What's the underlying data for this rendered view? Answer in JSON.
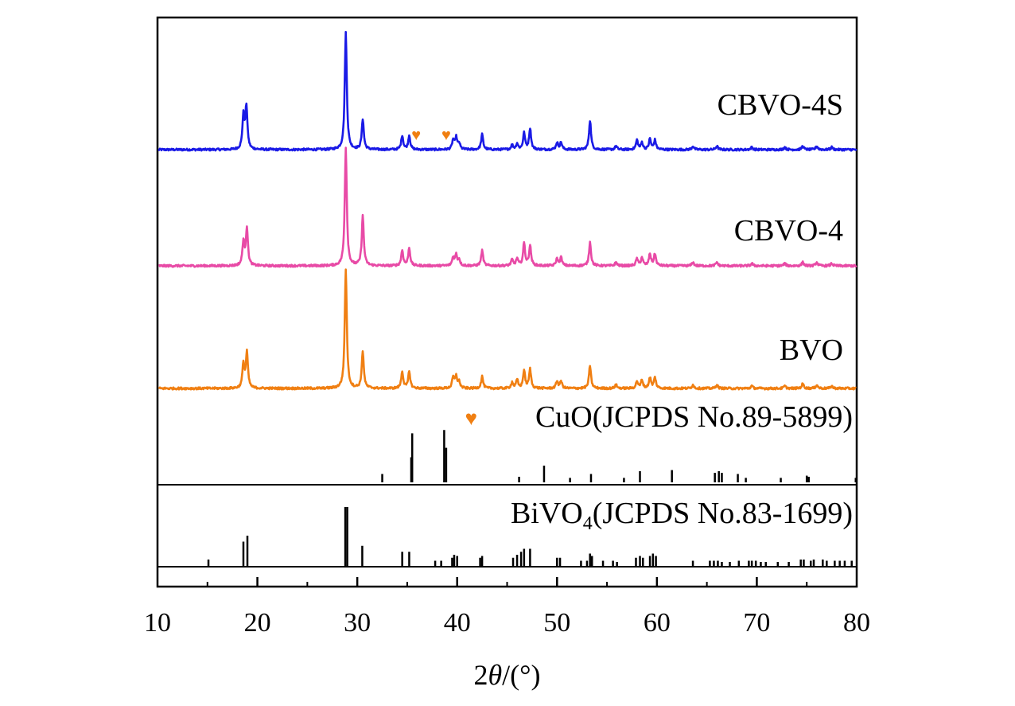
{
  "chart_data": {
    "type": "line",
    "title": "",
    "xlabel": "2θ/(°)",
    "xlabel_parts": {
      "prefix": "2",
      "symbol": "θ",
      "suffix": "/(°)"
    },
    "ylabel": "",
    "xlim": [
      10,
      80
    ],
    "xticks": [
      10,
      20,
      30,
      40,
      50,
      60,
      70,
      80
    ],
    "xtick_labels": [
      "10",
      "20",
      "30",
      "40",
      "50",
      "60",
      "70",
      "80"
    ],
    "series": [
      {
        "name": "CBVO-4S",
        "color": "#1a1ae6",
        "peaks": [
          [
            18.6,
            0.28
          ],
          [
            18.9,
            0.36
          ],
          [
            28.85,
            1.0
          ],
          [
            30.55,
            0.26
          ],
          [
            34.5,
            0.12
          ],
          [
            35.2,
            0.12
          ],
          [
            39.6,
            0.08
          ],
          [
            39.9,
            0.1
          ],
          [
            40.2,
            0.05
          ],
          [
            42.5,
            0.13
          ],
          [
            45.5,
            0.04
          ],
          [
            46.0,
            0.05
          ],
          [
            46.7,
            0.14
          ],
          [
            47.3,
            0.18
          ],
          [
            50.0,
            0.06
          ],
          [
            50.4,
            0.06
          ],
          [
            53.3,
            0.25
          ],
          [
            55.9,
            0.03
          ],
          [
            58.0,
            0.08
          ],
          [
            58.5,
            0.06
          ],
          [
            59.3,
            0.09
          ],
          [
            59.8,
            0.08
          ],
          [
            63.6,
            0.03
          ],
          [
            66.0,
            0.03
          ],
          [
            69.5,
            0.02
          ],
          [
            72.8,
            0.02
          ],
          [
            74.6,
            0.03
          ],
          [
            76.0,
            0.03
          ],
          [
            77.5,
            0.02
          ]
        ],
        "impurity_markers": [
          35.9,
          38.9
        ]
      },
      {
        "name": "CBVO-4",
        "color": "#e84aa6",
        "peaks": [
          [
            18.6,
            0.2
          ],
          [
            18.95,
            0.32
          ],
          [
            28.85,
            1.0
          ],
          [
            30.55,
            0.42
          ],
          [
            34.5,
            0.13
          ],
          [
            35.2,
            0.15
          ],
          [
            39.6,
            0.07
          ],
          [
            39.9,
            0.09
          ],
          [
            40.2,
            0.05
          ],
          [
            42.5,
            0.13
          ],
          [
            45.5,
            0.05
          ],
          [
            46.0,
            0.06
          ],
          [
            46.7,
            0.19
          ],
          [
            47.3,
            0.17
          ],
          [
            50.0,
            0.06
          ],
          [
            50.4,
            0.07
          ],
          [
            53.3,
            0.2
          ],
          [
            55.9,
            0.03
          ],
          [
            58.0,
            0.06
          ],
          [
            58.5,
            0.07
          ],
          [
            59.3,
            0.1
          ],
          [
            59.8,
            0.1
          ],
          [
            63.6,
            0.03
          ],
          [
            66.0,
            0.03
          ],
          [
            69.5,
            0.02
          ],
          [
            72.8,
            0.02
          ],
          [
            74.6,
            0.03
          ],
          [
            76.0,
            0.03
          ],
          [
            77.5,
            0.02
          ]
        ],
        "impurity_markers": []
      },
      {
        "name": "BVO",
        "color": "#f07f12",
        "peaks": [
          [
            18.6,
            0.2
          ],
          [
            18.95,
            0.3
          ],
          [
            28.85,
            1.0
          ],
          [
            30.55,
            0.31
          ],
          [
            34.5,
            0.14
          ],
          [
            35.2,
            0.14
          ],
          [
            39.6,
            0.09
          ],
          [
            39.9,
            0.1
          ],
          [
            40.2,
            0.05
          ],
          [
            42.5,
            0.1
          ],
          [
            45.5,
            0.05
          ],
          [
            46.0,
            0.07
          ],
          [
            46.7,
            0.15
          ],
          [
            47.3,
            0.16
          ],
          [
            50.0,
            0.06
          ],
          [
            50.4,
            0.06
          ],
          [
            53.3,
            0.19
          ],
          [
            55.9,
            0.03
          ],
          [
            58.0,
            0.06
          ],
          [
            58.5,
            0.07
          ],
          [
            59.3,
            0.09
          ],
          [
            59.8,
            0.09
          ],
          [
            63.6,
            0.03
          ],
          [
            66.0,
            0.03
          ],
          [
            69.5,
            0.02
          ],
          [
            72.8,
            0.02
          ],
          [
            74.6,
            0.04
          ],
          [
            76.0,
            0.03
          ],
          [
            77.5,
            0.02
          ]
        ],
        "impurity_markers": []
      }
    ],
    "reference_patterns": [
      {
        "name": "CuO(JCPDS No.89-5899)",
        "marker": "♥",
        "marker_color": "#f07f12",
        "lines": [
          [
            32.5,
            0.15
          ],
          [
            35.4,
            0.45
          ],
          [
            35.5,
            0.88
          ],
          [
            38.7,
            0.94
          ],
          [
            38.9,
            0.62
          ],
          [
            46.2,
            0.1
          ],
          [
            48.7,
            0.3
          ],
          [
            51.3,
            0.08
          ],
          [
            53.4,
            0.15
          ],
          [
            56.7,
            0.08
          ],
          [
            58.3,
            0.2
          ],
          [
            61.5,
            0.22
          ],
          [
            65.8,
            0.17
          ],
          [
            66.2,
            0.2
          ],
          [
            66.5,
            0.17
          ],
          [
            68.1,
            0.15
          ],
          [
            68.9,
            0.08
          ],
          [
            72.4,
            0.08
          ],
          [
            75.0,
            0.12
          ],
          [
            75.2,
            0.1
          ],
          [
            79.9,
            0.08
          ]
        ]
      },
      {
        "name": "BiVO₄(JCPDS No.83-1699)",
        "name_parts": {
          "prefix": "BiVO",
          "subscript": "4",
          "suffix": "(JCPDS No.83-1699)"
        },
        "marker": "",
        "lines": [
          [
            15.1,
            0.12
          ],
          [
            18.6,
            0.42
          ],
          [
            19.0,
            0.52
          ],
          [
            28.8,
            1.0
          ],
          [
            29.0,
            1.0
          ],
          [
            30.5,
            0.35
          ],
          [
            34.5,
            0.25
          ],
          [
            35.2,
            0.25
          ],
          [
            37.8,
            0.1
          ],
          [
            38.4,
            0.1
          ],
          [
            39.5,
            0.15
          ],
          [
            39.7,
            0.2
          ],
          [
            40.0,
            0.18
          ],
          [
            42.3,
            0.15
          ],
          [
            42.5,
            0.18
          ],
          [
            45.6,
            0.15
          ],
          [
            46.0,
            0.2
          ],
          [
            46.4,
            0.25
          ],
          [
            46.7,
            0.3
          ],
          [
            47.3,
            0.3
          ],
          [
            50.0,
            0.15
          ],
          [
            50.3,
            0.15
          ],
          [
            52.4,
            0.1
          ],
          [
            53.0,
            0.1
          ],
          [
            53.3,
            0.22
          ],
          [
            53.5,
            0.18
          ],
          [
            54.6,
            0.1
          ],
          [
            55.6,
            0.1
          ],
          [
            56.0,
            0.08
          ],
          [
            57.9,
            0.15
          ],
          [
            58.3,
            0.18
          ],
          [
            58.6,
            0.15
          ],
          [
            59.3,
            0.18
          ],
          [
            59.6,
            0.22
          ],
          [
            59.9,
            0.18
          ],
          [
            63.6,
            0.1
          ],
          [
            65.3,
            0.1
          ],
          [
            65.7,
            0.1
          ],
          [
            66.1,
            0.1
          ],
          [
            66.5,
            0.08
          ],
          [
            67.3,
            0.08
          ],
          [
            68.2,
            0.1
          ],
          [
            69.2,
            0.1
          ],
          [
            69.5,
            0.1
          ],
          [
            69.9,
            0.1
          ],
          [
            70.4,
            0.08
          ],
          [
            70.9,
            0.08
          ],
          [
            72.1,
            0.08
          ],
          [
            73.2,
            0.08
          ],
          [
            74.4,
            0.12
          ],
          [
            74.7,
            0.12
          ],
          [
            75.4,
            0.1
          ],
          [
            75.7,
            0.12
          ],
          [
            76.6,
            0.12
          ],
          [
            77.0,
            0.1
          ],
          [
            77.8,
            0.1
          ],
          [
            78.3,
            0.1
          ],
          [
            78.8,
            0.1
          ],
          [
            79.5,
            0.1
          ]
        ]
      }
    ]
  }
}
